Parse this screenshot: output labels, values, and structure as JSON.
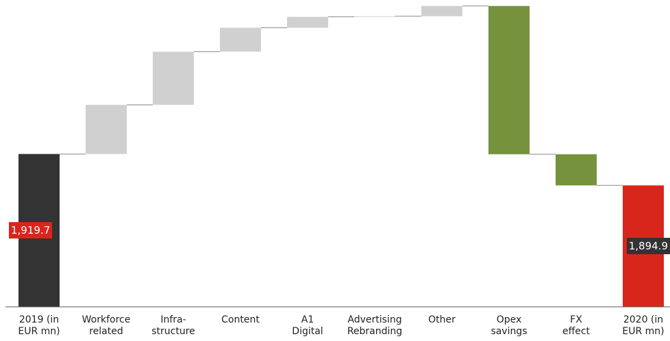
{
  "chart_data": {
    "type": "waterfall",
    "categories": [
      "2019 (in\nEUR mn)",
      "Workforce\nrelated",
      "Infra-\nstructure",
      "Content",
      "A1\nDigital",
      "Advertising\nRebranding",
      "Other",
      "Opex\nsavings",
      "FX\neffect",
      "2020 (in\nEUR mn)"
    ],
    "values": [
      1919.7,
      38.8,
      42.0,
      18.9,
      8.6,
      0.5,
      8.1,
      -117.1,
      -24.6,
      1894.9
    ],
    "value_labels": [
      "1,919.7",
      null,
      null,
      null,
      null,
      null,
      null,
      null,
      null,
      "1,894.9"
    ],
    "colors": {
      "start": "#333333",
      "increase": "#d0d0d0",
      "decrease": "#76923c",
      "end": "#d9261c"
    },
    "ylim": [
      1799,
      2037
    ]
  }
}
